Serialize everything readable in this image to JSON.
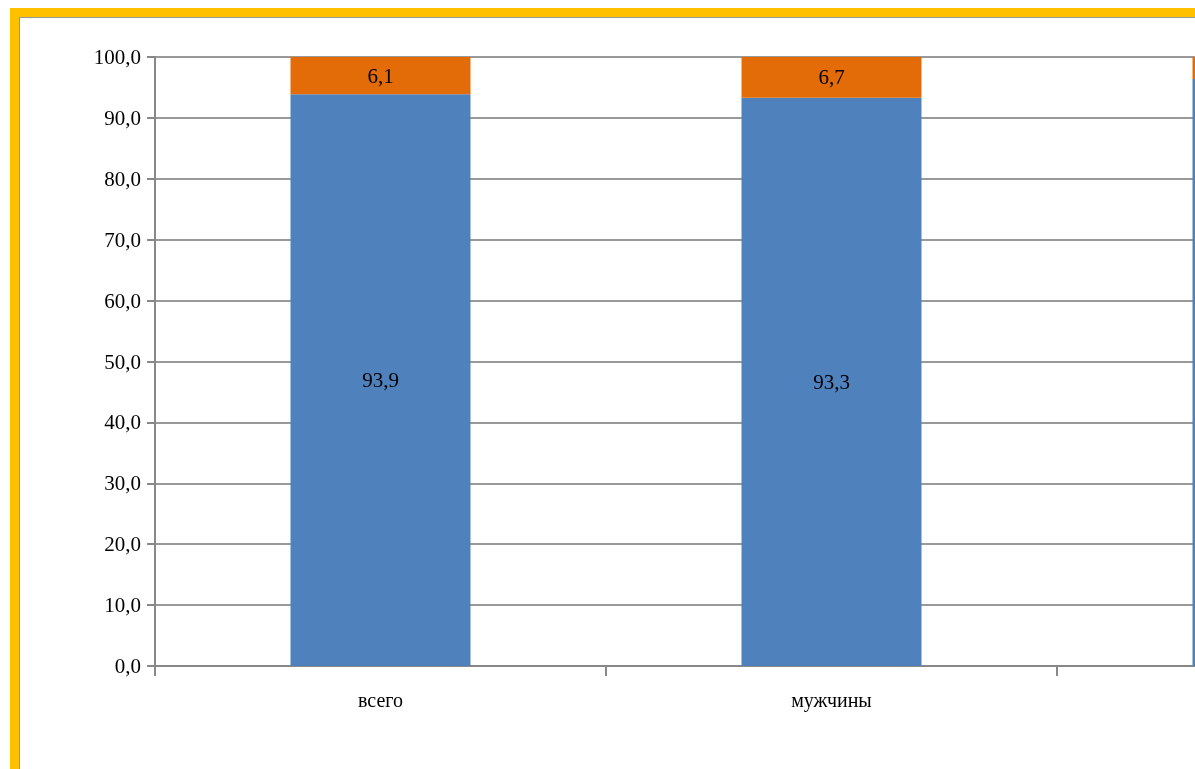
{
  "chart_data": {
    "type": "bar",
    "stacked": true,
    "categories": [
      "всего",
      "мужчины",
      null
    ],
    "series": [
      {
        "color": "#4f81bd",
        "values": [
          93.9,
          93.3,
          96.4
        ],
        "value_labels": [
          "93,9",
          "93,3",
          null
        ]
      },
      {
        "color": "#e36c09",
        "values": [
          6.1,
          6.7,
          3.6
        ],
        "value_labels": [
          "6,1",
          "6,7",
          null
        ]
      }
    ],
    "ylim": [
      0,
      100
    ],
    "yticks": [
      {
        "value": 0,
        "label": "0,0"
      },
      {
        "value": 10,
        "label": "10,0"
      },
      {
        "value": 20,
        "label": "20,0"
      },
      {
        "value": 30,
        "label": "30,0"
      },
      {
        "value": 40,
        "label": "40,0"
      },
      {
        "value": 50,
        "label": "50,0"
      },
      {
        "value": 60,
        "label": "60,0"
      },
      {
        "value": 70,
        "label": "70,0"
      },
      {
        "value": 80,
        "label": "80,0"
      },
      {
        "value": 90,
        "label": "90,0"
      },
      {
        "value": 100,
        "label": "100,0"
      }
    ],
    "grid": "y"
  }
}
